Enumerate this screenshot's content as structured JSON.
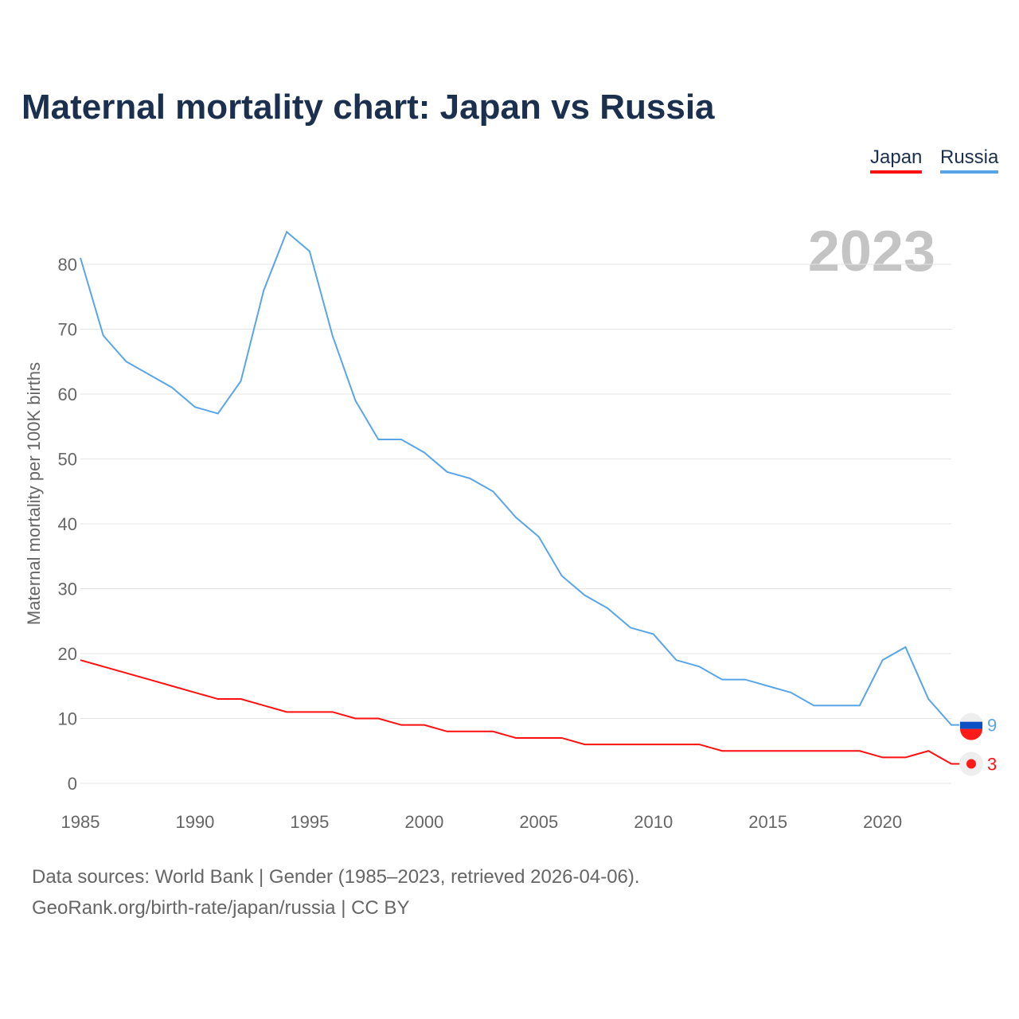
{
  "title": "Maternal mortality chart: Japan vs Russia",
  "legend": {
    "japan": "Japan",
    "russia": "Russia"
  },
  "footer": {
    "line1": "Data sources: World Bank | Gender (1985–2023, retrieved 2026-04-06).",
    "line2": "GeoRank.org/birth-rate/japan/russia | CC BY"
  },
  "chart_data": {
    "type": "line",
    "title": "Maternal mortality chart: Japan vs Russia",
    "ylabel": "Maternal mortality per 100K births",
    "xlabel": "",
    "year_label": "2023",
    "x": [
      1985,
      1986,
      1987,
      1988,
      1989,
      1990,
      1991,
      1992,
      1993,
      1994,
      1995,
      1996,
      1997,
      1998,
      1999,
      2000,
      2001,
      2002,
      2003,
      2004,
      2005,
      2006,
      2007,
      2008,
      2009,
      2010,
      2011,
      2012,
      2013,
      2014,
      2015,
      2016,
      2017,
      2018,
      2019,
      2020,
      2021,
      2022,
      2023
    ],
    "series": [
      {
        "name": "Russia",
        "color": "#5aa5e8",
        "end_label": "9",
        "values": [
          81,
          69,
          65,
          63,
          61,
          58,
          57,
          62,
          76,
          85,
          82,
          69,
          59,
          53,
          53,
          51,
          48,
          47,
          45,
          41,
          38,
          32,
          29,
          27,
          24,
          23,
          19,
          18,
          16,
          16,
          15,
          14,
          12,
          12,
          12,
          19,
          21,
          13,
          9
        ]
      },
      {
        "name": "Japan",
        "color": "#ff0f0f",
        "end_label": "3",
        "values": [
          19,
          18,
          17,
          16,
          15,
          14,
          13,
          13,
          12,
          11,
          11,
          11,
          10,
          10,
          9,
          9,
          8,
          8,
          8,
          7,
          7,
          7,
          6,
          6,
          6,
          6,
          6,
          6,
          5,
          5,
          5,
          5,
          5,
          5,
          5,
          4,
          4,
          5,
          3
        ]
      }
    ],
    "xlim": [
      1985,
      2023
    ],
    "ylim": [
      0,
      80
    ],
    "yticks": [
      "0",
      "10",
      "20",
      "30",
      "40",
      "50",
      "60",
      "70",
      "80"
    ],
    "xticks": [
      "1985",
      "1990",
      "1995",
      "2000",
      "2005",
      "2010",
      "2015",
      "2020"
    ],
    "grid": true,
    "legend_position": "top-right"
  }
}
